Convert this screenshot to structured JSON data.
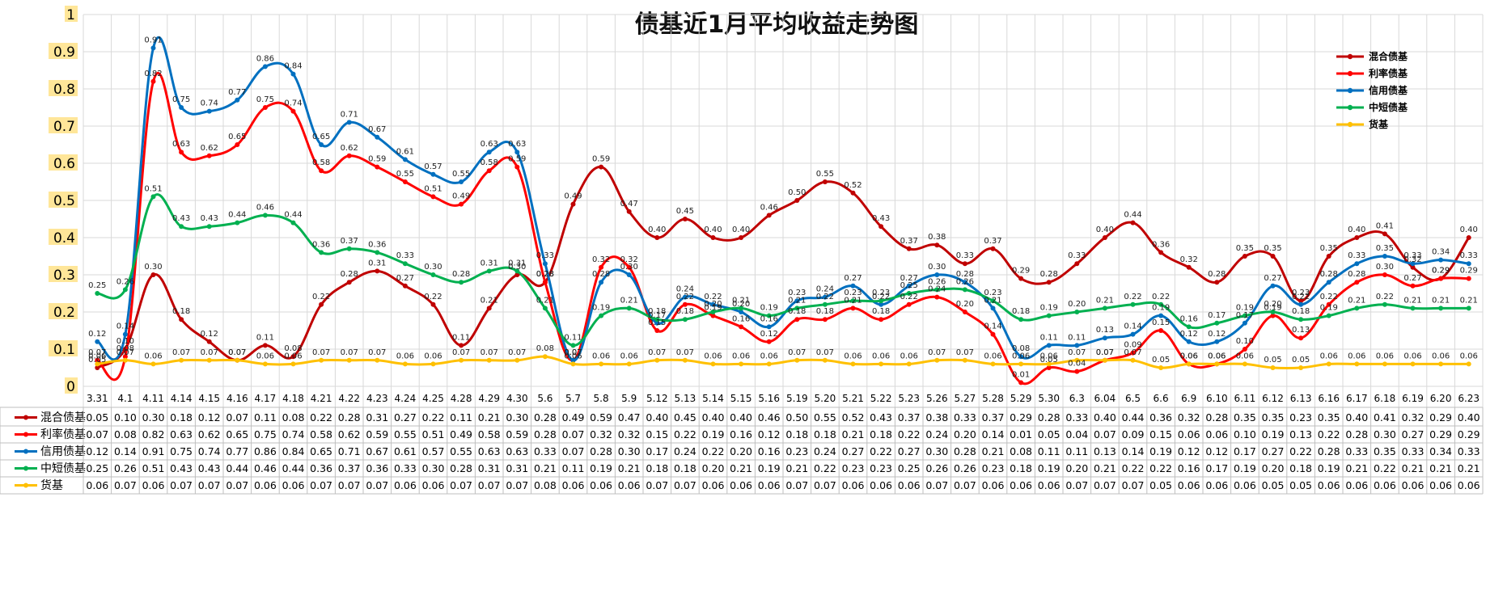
{
  "chart_data": {
    "type": "line",
    "title": "债基近1月平均收益走势图",
    "xlabel": "",
    "ylabel": "",
    "ylim": [
      0,
      1
    ],
    "yticks": [
      "0",
      "0.1",
      "0.2",
      "0.3",
      "0.4",
      "0.5",
      "0.6",
      "0.7",
      "0.8",
      "0.9",
      "1"
    ],
    "grid": true,
    "legend_position": "top-right",
    "categories": [
      "3.31",
      "4.1",
      "4.11",
      "4.14",
      "4.15",
      "4.16",
      "4.17",
      "4.18",
      "4.21",
      "4.22",
      "4.23",
      "4.24",
      "4.25",
      "4.28",
      "4.29",
      "4.30",
      "5.6",
      "5.7",
      "5.8",
      "5.9",
      "5.12",
      "5.13",
      "5.14",
      "5.15",
      "5.16",
      "5.19",
      "5.20",
      "5.21",
      "5.22",
      "5.23",
      "5.26",
      "5.27",
      "5.28",
      "5.29",
      "5.30",
      "6.3",
      "6.04",
      "6.5",
      "6.6",
      "6.9",
      "6.10",
      "6.11",
      "6.12",
      "6.13",
      "6.16",
      "6.17",
      "6.18",
      "6.19",
      "6.20",
      "6.23"
    ],
    "series": [
      {
        "name": "混合债基",
        "color": "#C00000",
        "values": [
          0.05,
          0.1,
          0.3,
          0.18,
          0.12,
          0.07,
          0.11,
          0.08,
          0.22,
          0.28,
          0.31,
          0.27,
          0.22,
          0.11,
          0.21,
          0.3,
          0.28,
          0.49,
          0.59,
          0.47,
          0.4,
          0.45,
          0.4,
          0.4,
          0.46,
          0.5,
          0.55,
          0.52,
          0.43,
          0.37,
          0.38,
          0.33,
          0.37,
          0.29,
          0.28,
          0.33,
          0.4,
          0.44,
          0.36,
          0.32,
          0.28,
          0.35,
          0.35,
          0.23,
          0.35,
          0.4,
          0.41,
          0.32,
          0.29,
          0.4
        ]
      },
      {
        "name": "利率债基",
        "color": "#FF0000",
        "values": [
          0.07,
          0.08,
          0.82,
          0.63,
          0.62,
          0.65,
          0.75,
          0.74,
          0.58,
          0.62,
          0.59,
          0.55,
          0.51,
          0.49,
          0.58,
          0.59,
          0.28,
          0.07,
          0.32,
          0.32,
          0.15,
          0.22,
          0.19,
          0.16,
          0.12,
          0.18,
          0.18,
          0.21,
          0.18,
          0.22,
          0.24,
          0.2,
          0.14,
          0.01,
          0.05,
          0.04,
          0.07,
          0.09,
          0.15,
          0.06,
          0.06,
          0.1,
          0.19,
          0.13,
          0.22,
          0.28,
          0.3,
          0.27,
          0.29,
          0.29
        ]
      },
      {
        "name": "信用债基",
        "color": "#0070C0",
        "values": [
          0.12,
          0.14,
          0.91,
          0.75,
          0.74,
          0.77,
          0.86,
          0.84,
          0.65,
          0.71,
          0.67,
          0.61,
          0.57,
          0.55,
          0.63,
          0.63,
          0.33,
          0.07,
          0.28,
          0.3,
          0.17,
          0.24,
          0.22,
          0.2,
          0.16,
          0.23,
          0.24,
          0.27,
          0.22,
          0.27,
          0.3,
          0.28,
          0.21,
          0.08,
          0.11,
          0.11,
          0.13,
          0.14,
          0.19,
          0.12,
          0.12,
          0.17,
          0.27,
          0.22,
          0.28,
          0.33,
          0.35,
          0.33,
          0.34,
          0.33
        ]
      },
      {
        "name": "中短债基",
        "color": "#00B050",
        "values": [
          0.25,
          0.26,
          0.51,
          0.43,
          0.43,
          0.44,
          0.46,
          0.44,
          0.36,
          0.37,
          0.36,
          0.33,
          0.3,
          0.28,
          0.31,
          0.31,
          0.21,
          0.11,
          0.19,
          0.21,
          0.18,
          0.18,
          0.2,
          0.21,
          0.19,
          0.21,
          0.22,
          0.23,
          0.23,
          0.25,
          0.26,
          0.26,
          0.23,
          0.18,
          0.19,
          0.2,
          0.21,
          0.22,
          0.22,
          0.16,
          0.17,
          0.19,
          0.2,
          0.18,
          0.19,
          0.21,
          0.22,
          0.21,
          0.21,
          0.21
        ]
      },
      {
        "name": "货基",
        "color": "#FFC000",
        "values": [
          0.06,
          0.07,
          0.06,
          0.07,
          0.07,
          0.07,
          0.06,
          0.06,
          0.07,
          0.07,
          0.07,
          0.06,
          0.06,
          0.07,
          0.07,
          0.07,
          0.08,
          0.06,
          0.06,
          0.06,
          0.07,
          0.07,
          0.06,
          0.06,
          0.06,
          0.07,
          0.07,
          0.06,
          0.06,
          0.06,
          0.07,
          0.07,
          0.06,
          0.06,
          0.06,
          0.07,
          0.07,
          0.07,
          0.05,
          0.06,
          0.06,
          0.06,
          0.05,
          0.05,
          0.06,
          0.06,
          0.06,
          0.06,
          0.06,
          0.06
        ]
      }
    ]
  },
  "colors": {
    "ytick_highlight": "#FFE699",
    "gridline": "#D9D9D9"
  }
}
